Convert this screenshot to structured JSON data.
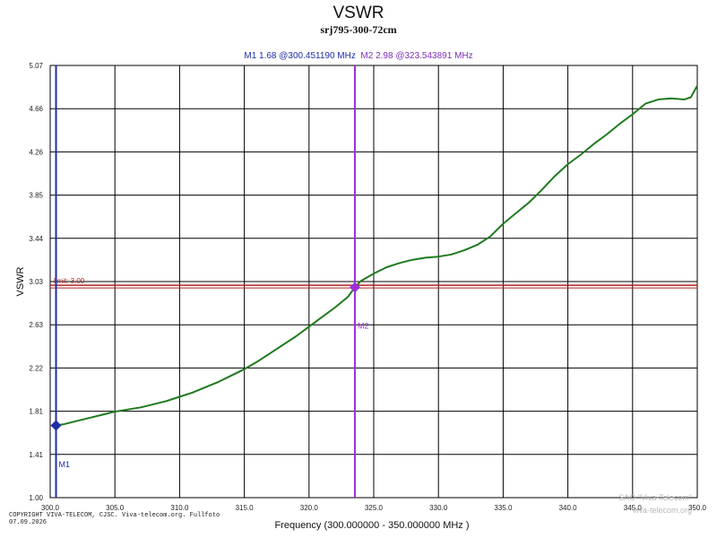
{
  "header": {
    "title": "VSWR",
    "subtitle": "srj795-300-72cm",
    "marker_readout": {
      "m1": "M1  1.68 @300.451190 MHz",
      "m2": "M2  2.98 @323.543891 MHz"
    }
  },
  "footer": {
    "copyright_line1": "COPYRIGHT VIVA-TELECOM, CJSC. Viva-telecom.org. Fullfoto",
    "copyright_line2": "07.09.2026",
    "watermark_line1": "SAO \"Viva-Telecom\"",
    "watermark_line2": "viva-telecom.org"
  },
  "colors": {
    "trace": "#1f7a1f",
    "limit": "#b22222",
    "m1": "#1c2ea8",
    "m2": "#9b30d9",
    "grid": "#000000"
  },
  "chart_data": {
    "type": "line",
    "title": "VSWR",
    "subtitle": "srj795-300-72cm",
    "xlabel": "Frequency (300.000000 - 350.000000 MHz )",
    "ylabel": "VSWR",
    "xlim": [
      300,
      350
    ],
    "ylim": [
      1.0,
      5.07
    ],
    "grid": true,
    "x_ticks": [
      "300.0",
      "305.0",
      "310.0",
      "315.0",
      "320.0",
      "325.0",
      "330.0",
      "335.0",
      "340.0",
      "345.0",
      "350.0"
    ],
    "y_ticks": [
      "1.00",
      "1.41",
      "1.81",
      "2.22",
      "2.63",
      "3.03",
      "3.44",
      "3.85",
      "4.26",
      "4.66",
      "5.07"
    ],
    "limit": {
      "label": "limit: 3.00",
      "value": 3.0
    },
    "markers": [
      {
        "name": "M1",
        "x": 300.45119,
        "y": 1.68
      },
      {
        "name": "M2",
        "x": 323.543891,
        "y": 2.98
      }
    ],
    "series": [
      {
        "x": [
          300.45,
          301,
          302,
          303,
          304,
          305,
          306,
          307,
          308,
          309,
          310,
          311,
          312,
          313,
          314,
          315,
          316,
          317,
          318,
          319,
          320,
          321,
          322,
          323,
          323.54,
          324,
          325,
          326,
          327,
          328,
          329,
          330,
          331,
          332,
          333,
          334,
          335,
          336,
          337,
          338,
          339,
          340,
          341,
          342,
          343,
          344,
          345,
          346,
          347,
          348,
          349,
          349.5,
          350
        ],
        "y": [
          1.68,
          1.69,
          1.72,
          1.75,
          1.78,
          1.81,
          1.83,
          1.85,
          1.88,
          1.91,
          1.95,
          1.99,
          2.04,
          2.09,
          2.15,
          2.21,
          2.28,
          2.36,
          2.44,
          2.52,
          2.61,
          2.7,
          2.79,
          2.89,
          2.98,
          3.04,
          3.11,
          3.17,
          3.21,
          3.24,
          3.26,
          3.27,
          3.29,
          3.33,
          3.38,
          3.46,
          3.58,
          3.68,
          3.78,
          3.9,
          4.03,
          4.14,
          4.23,
          4.33,
          4.42,
          4.52,
          4.61,
          4.71,
          4.75,
          4.76,
          4.75,
          4.77,
          4.88
        ]
      }
    ]
  }
}
